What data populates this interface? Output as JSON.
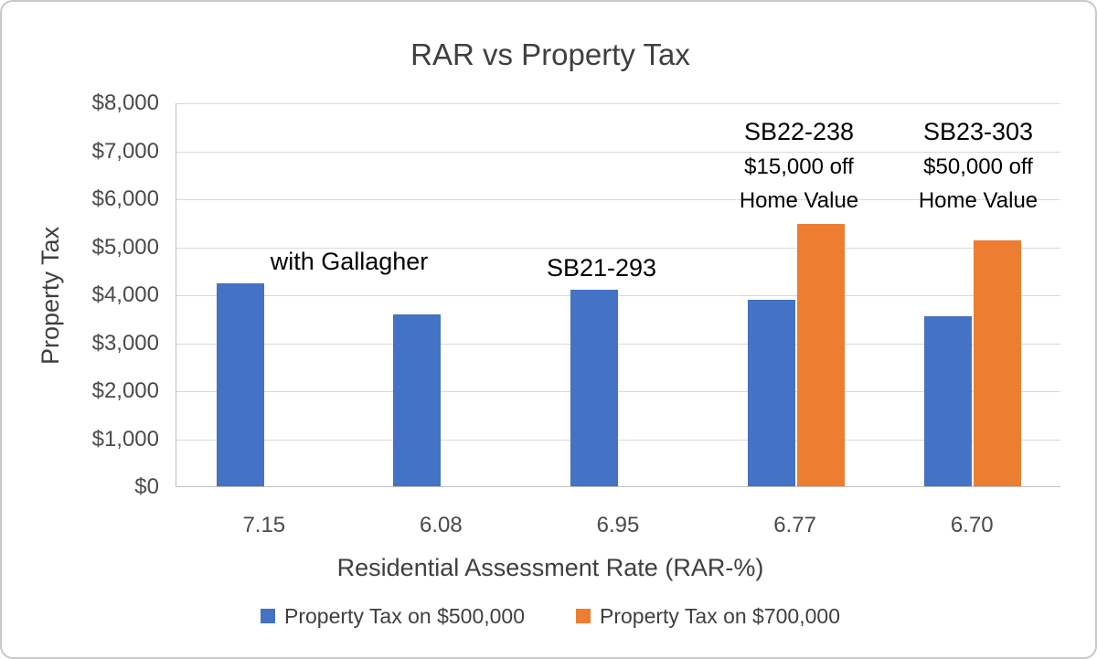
{
  "chart_data": {
    "type": "bar",
    "title": "RAR vs Property Tax",
    "xlabel": "Residential Assessment Rate (RAR-%)",
    "ylabel": "Property Tax",
    "categories": [
      "7.15",
      "6.08",
      "6.95",
      "6.77",
      "6.70"
    ],
    "series": [
      {
        "name": "Property Tax on $500,000",
        "color": "#4472C4",
        "values": [
          4220,
          3580,
          4100,
          3880,
          3550
        ]
      },
      {
        "name": "Property Tax on $700,000",
        "color": "#ED7D31",
        "values": [
          null,
          null,
          null,
          5470,
          5120
        ]
      }
    ],
    "ylim": [
      0,
      8000
    ],
    "ytick_step": 1000,
    "ytick_labels": [
      "$0",
      "$1,000",
      "$2,000",
      "$3,000",
      "$4,000",
      "$5,000",
      "$6,000",
      "$7,000",
      "$8,000"
    ],
    "grid": true,
    "legend_position": "bottom",
    "annotations": [
      {
        "text": "with Gallagher"
      },
      {
        "text": "SB21-293"
      },
      {
        "lines": [
          "SB22-238",
          "$15,000 off",
          "Home Value"
        ]
      },
      {
        "lines": [
          "SB23-303",
          "$50,000 off",
          "Home Value"
        ]
      }
    ]
  }
}
